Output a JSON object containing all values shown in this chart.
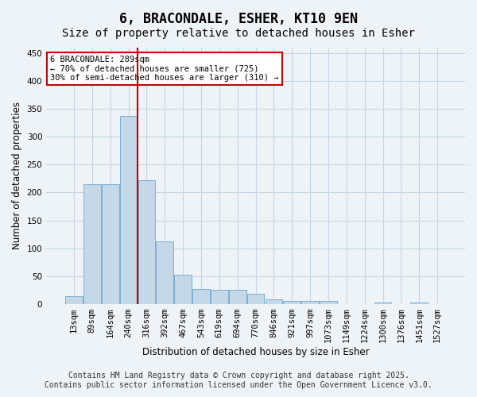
{
  "title_line1": "6, BRACONDALE, ESHER, KT10 9EN",
  "title_line2": "Size of property relative to detached houses in Esher",
  "xlabel": "Distribution of detached houses by size in Esher",
  "ylabel": "Number of detached properties",
  "categories": [
    "13sqm",
    "89sqm",
    "164sqm",
    "240sqm",
    "316sqm",
    "392sqm",
    "467sqm",
    "543sqm",
    "619sqm",
    "694sqm",
    "770sqm",
    "846sqm",
    "921sqm",
    "997sqm",
    "1073sqm",
    "1149sqm",
    "1224sqm",
    "1300sqm",
    "1376sqm",
    "1451sqm",
    "1527sqm"
  ],
  "values": [
    14,
    215,
    215,
    337,
    222,
    112,
    53,
    27,
    25,
    25,
    18,
    9,
    5,
    5,
    5,
    0,
    0,
    2,
    0,
    2,
    0
  ],
  "bar_color": "#c5d8e8",
  "bar_edge_color": "#7bafd4",
  "grid_color": "#c8d4e0",
  "background_color": "#eef3f8",
  "vline_color": "#cc0000",
  "annotation_text": "6 BRACONDALE: 289sqm\n← 70% of detached houses are smaller (725)\n30% of semi-detached houses are larger (310) →",
  "annotation_box_color": "#ffffff",
  "annotation_box_edge": "#cc0000",
  "ylim": [
    0,
    460
  ],
  "yticks": [
    0,
    50,
    100,
    150,
    200,
    250,
    300,
    350,
    400,
    450
  ],
  "footer_line1": "Contains HM Land Registry data © Crown copyright and database right 2025.",
  "footer_line2": "Contains public sector information licensed under the Open Government Licence v3.0.",
  "title_fontsize": 12,
  "subtitle_fontsize": 10,
  "axis_label_fontsize": 8.5,
  "tick_fontsize": 7.5,
  "footer_fontsize": 7,
  "annotation_fontsize": 7.5
}
